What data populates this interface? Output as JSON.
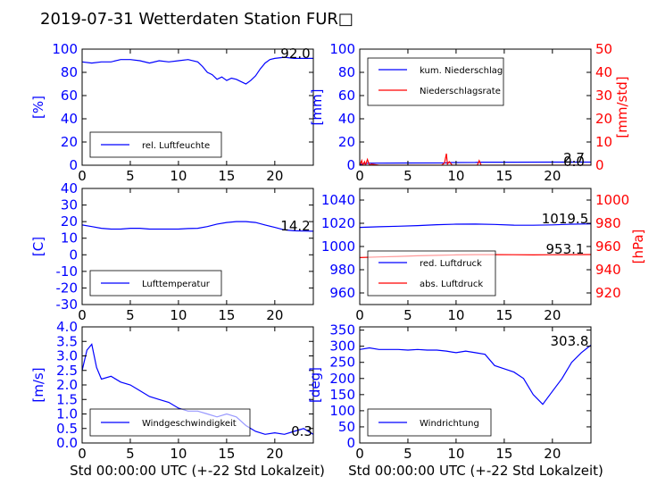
{
  "figure": {
    "title": "2019-07-31 Wetterdaten Station FUR□",
    "xlabel": "Std 00:00:00 UTC (+-22 Std Lokalzeit)"
  },
  "colors": {
    "blue": "#0000ff",
    "red": "#ff0000",
    "black": "#000000"
  },
  "chart_data": [
    {
      "id": "humidity",
      "type": "line",
      "ylabel": "[%]",
      "ylim": [
        0,
        100
      ],
      "yticks": [
        0,
        20,
        40,
        60,
        80,
        100
      ],
      "xlim": [
        0,
        24
      ],
      "xticks": [
        0,
        5,
        10,
        15,
        20
      ],
      "legend": "bottom-left",
      "last_value_label": "92.0",
      "series": [
        {
          "name": "rel. Luftfeuchte",
          "color": "#0000ff",
          "x": [
            0,
            1,
            2,
            3,
            4,
            5,
            6,
            7,
            8,
            9,
            10,
            11,
            12,
            12.5,
            13,
            13.5,
            14,
            14.5,
            15,
            15.5,
            16,
            16.5,
            17,
            17.5,
            18,
            18.5,
            19,
            19.5,
            20,
            21,
            22,
            23,
            24
          ],
          "y": [
            89,
            88,
            89,
            89,
            91,
            91,
            90,
            88,
            90,
            89,
            90,
            91,
            89,
            85,
            80,
            78,
            74,
            76,
            73,
            75,
            74,
            72,
            70,
            73,
            77,
            83,
            88,
            91,
            92,
            93,
            92,
            92,
            92
          ]
        }
      ]
    },
    {
      "id": "precip",
      "type": "line",
      "ylabel": "[mm]",
      "ylim": [
        0,
        100
      ],
      "yticks": [
        0,
        20,
        40,
        60,
        80,
        100
      ],
      "y2label": "[mm/std]",
      "y2lim": [
        0,
        50
      ],
      "y2ticks": [
        0,
        10,
        20,
        30,
        40,
        50
      ],
      "xlim": [
        0,
        24
      ],
      "xticks": [
        0,
        5,
        10,
        15,
        20
      ],
      "legend": "top-left",
      "value_labels": [
        "2.7",
        "0.0"
      ],
      "series": [
        {
          "name": "kum. Niederschlag",
          "color": "#0000ff",
          "axis": "left",
          "x": [
            0,
            0.5,
            1,
            5,
            9,
            9.2,
            12,
            12.5,
            16,
            20,
            24
          ],
          "y": [
            0.5,
            1.5,
            1.8,
            1.9,
            2.0,
            2.3,
            2.4,
            2.6,
            2.6,
            2.7,
            2.7
          ]
        },
        {
          "name": "Niederschlagsrate",
          "color": "#ff0000",
          "axis": "right",
          "x": [
            0,
            0.2,
            0.3,
            0.5,
            0.6,
            0.8,
            1.0,
            1.2,
            2,
            8.5,
            8.8,
            9.0,
            9.1,
            9.3,
            9.6,
            12.2,
            12.4,
            12.6,
            13,
            20,
            24
          ],
          "y": [
            0,
            2,
            0,
            1.5,
            0,
            2.5,
            0,
            0.5,
            0,
            0,
            1,
            5,
            0.5,
            1.5,
            0,
            0,
            2,
            0,
            0,
            0,
            0
          ]
        }
      ]
    },
    {
      "id": "temperature",
      "type": "line",
      "ylabel": "[C]",
      "ylim": [
        -30,
        40
      ],
      "yticks": [
        -30,
        -20,
        -10,
        0,
        10,
        20,
        30,
        40
      ],
      "xlim": [
        0,
        24
      ],
      "xticks": [
        0,
        5,
        10,
        15,
        20
      ],
      "legend": "bottom-left",
      "last_value_label": "14.2",
      "series": [
        {
          "name": "Lufttemperatur",
          "color": "#0000ff",
          "x": [
            0,
            1,
            2,
            3,
            4,
            5,
            6,
            7,
            8,
            9,
            10,
            11,
            12,
            13,
            14,
            15,
            16,
            17,
            18,
            19,
            20,
            21,
            22,
            23,
            24
          ],
          "y": [
            18,
            17,
            16,
            15.5,
            15.5,
            16,
            16,
            15.5,
            15.5,
            15.5,
            15.5,
            15.8,
            16,
            17,
            18.5,
            19.5,
            20,
            20,
            19.5,
            18,
            16.5,
            15,
            14.5,
            14.3,
            14.2
          ]
        }
      ]
    },
    {
      "id": "pressure",
      "type": "line",
      "ylabel": "",
      "ylim": [
        950,
        1050
      ],
      "yticks": [
        960,
        980,
        1000,
        1020,
        1040
      ],
      "y2label": "[hPa]",
      "y2lim": [
        910,
        1010
      ],
      "y2ticks": [
        920,
        940,
        960,
        980,
        1000
      ],
      "xlim": [
        0,
        24
      ],
      "xticks": [
        0,
        5,
        10,
        15,
        20
      ],
      "legend": "bottom-left",
      "value_labels": [
        "1019.5",
        "953.1"
      ],
      "series": [
        {
          "name": "red. Luftdruck",
          "color": "#0000ff",
          "axis": "left",
          "x": [
            0,
            2,
            4,
            6,
            8,
            10,
            12,
            14,
            16,
            18,
            20,
            22,
            24
          ],
          "y": [
            1016.5,
            1017,
            1017.5,
            1018,
            1018.8,
            1019.2,
            1019.3,
            1019,
            1018.4,
            1018.3,
            1018.6,
            1019.2,
            1019.5
          ]
        },
        {
          "name": "abs. Luftdruck",
          "color": "#ff0000",
          "axis": "right",
          "x": [
            0,
            2,
            4,
            6,
            8,
            10,
            12,
            14,
            16,
            18,
            20,
            22,
            24
          ],
          "y": [
            950.5,
            951,
            951.5,
            952,
            952.4,
            952.8,
            953,
            953,
            952.9,
            952.8,
            952.9,
            953,
            953.1
          ]
        }
      ]
    },
    {
      "id": "windspeed",
      "type": "line",
      "ylabel": "[m/s]",
      "ylim": [
        0,
        4
      ],
      "yticks": [
        0.0,
        0.5,
        1.0,
        1.5,
        2.0,
        2.5,
        3.0,
        3.5,
        4.0
      ],
      "xlim": [
        0,
        24
      ],
      "xticks": [
        0,
        5,
        10,
        15,
        20
      ],
      "legend": "bottom-left",
      "last_value_label": "0.3",
      "series": [
        {
          "name": "Windgeschwindigkeit",
          "color": "#0000ff",
          "x": [
            0,
            0.5,
            1,
            1.5,
            2,
            3,
            4,
            5,
            6,
            7,
            8,
            9,
            10,
            11,
            12,
            13,
            14,
            15,
            16,
            17,
            18,
            19,
            20,
            21,
            22,
            23,
            24
          ],
          "y": [
            2.5,
            3.2,
            3.4,
            2.6,
            2.2,
            2.3,
            2.1,
            2.0,
            1.8,
            1.6,
            1.5,
            1.4,
            1.2,
            1.1,
            1.1,
            1.0,
            0.9,
            1.0,
            0.9,
            0.6,
            0.4,
            0.3,
            0.35,
            0.3,
            0.4,
            0.5,
            0.3
          ]
        }
      ]
    },
    {
      "id": "winddir",
      "type": "line",
      "ylabel": "[deg]",
      "ylim": [
        0,
        360
      ],
      "yticks": [
        0,
        50,
        100,
        150,
        200,
        250,
        300,
        350
      ],
      "xlim": [
        0,
        24
      ],
      "xticks": [
        0,
        5,
        10,
        15,
        20
      ],
      "legend": "bottom-left",
      "last_value_label": "303.8",
      "series": [
        {
          "name": "Windrichtung",
          "color": "#0000ff",
          "x": [
            0,
            1,
            2,
            3,
            4,
            5,
            6,
            7,
            8,
            9,
            10,
            11,
            12,
            13,
            14,
            15,
            16,
            17,
            18,
            19,
            20,
            21,
            22,
            23,
            24
          ],
          "y": [
            290,
            295,
            290,
            290,
            290,
            288,
            290,
            288,
            288,
            285,
            280,
            285,
            280,
            275,
            240,
            230,
            220,
            200,
            150,
            120,
            160,
            200,
            250,
            280,
            303.8
          ]
        }
      ]
    }
  ]
}
